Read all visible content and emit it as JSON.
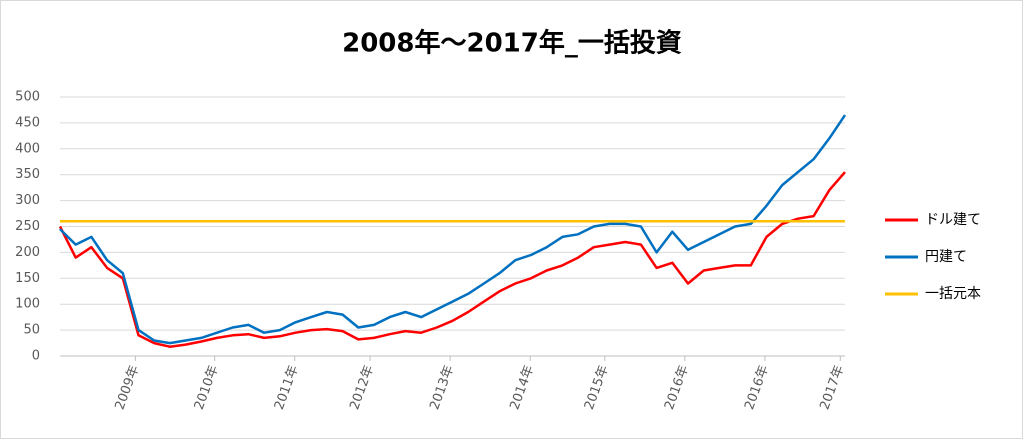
{
  "chart_data": {
    "type": "line",
    "title": "2008年～2017年_一括投資",
    "x": [
      0,
      2,
      4,
      6,
      8,
      10,
      12,
      14,
      16,
      18,
      20,
      22,
      24,
      26,
      28,
      30,
      32,
      34,
      36,
      38,
      40,
      42,
      44,
      46,
      48,
      50,
      52,
      54,
      56,
      58,
      60,
      62,
      64,
      66,
      68,
      70,
      72,
      74,
      76,
      78,
      80,
      82,
      84,
      86,
      88,
      90,
      92,
      94,
      96,
      98,
      100
    ],
    "series": [
      {
        "name": "ドル建て",
        "color": "#ff0000",
        "values": [
          250,
          190,
          210,
          170,
          150,
          40,
          25,
          18,
          22,
          28,
          35,
          40,
          42,
          35,
          38,
          45,
          50,
          52,
          48,
          32,
          35,
          42,
          48,
          45,
          55,
          68,
          85,
          105,
          125,
          140,
          150,
          165,
          175,
          190,
          210,
          215,
          220,
          215,
          170,
          180,
          140,
          165,
          170,
          175,
          175,
          230,
          255,
          265,
          270,
          320,
          355
        ]
      },
      {
        "name": "円建て",
        "color": "#0070c0",
        "values": [
          245,
          215,
          230,
          185,
          160,
          50,
          30,
          25,
          30,
          35,
          45,
          55,
          60,
          45,
          50,
          65,
          75,
          85,
          80,
          55,
          60,
          75,
          85,
          75,
          90,
          105,
          120,
          140,
          160,
          185,
          195,
          210,
          230,
          235,
          250,
          255,
          255,
          250,
          200,
          240,
          205,
          220,
          235,
          250,
          255,
          290,
          330,
          355,
          380,
          420,
          465
        ]
      },
      {
        "name": "一括元本",
        "color": "#ffc000",
        "values": [
          260,
          260,
          260,
          260,
          260,
          260,
          260,
          260,
          260,
          260,
          260,
          260,
          260,
          260,
          260,
          260,
          260,
          260,
          260,
          260,
          260,
          260,
          260,
          260,
          260,
          260,
          260,
          260,
          260,
          260,
          260,
          260,
          260,
          260,
          260,
          260,
          260,
          260,
          260,
          260,
          260,
          260,
          260,
          260,
          260,
          260,
          260,
          260,
          260,
          260,
          260
        ]
      }
    ],
    "xlim": [
      0,
      100
    ],
    "xticks": [
      {
        "value": 9.6,
        "label": "2009年"
      },
      {
        "value": 19.7,
        "label": "2010年"
      },
      {
        "value": 29.9,
        "label": "2011年"
      },
      {
        "value": 39.5,
        "label": "2012年"
      },
      {
        "value": 49.7,
        "label": "2013年"
      },
      {
        "value": 59.9,
        "label": "2014年"
      },
      {
        "value": 69.4,
        "label": "2015年"
      },
      {
        "value": 79.6,
        "label": "2016年"
      },
      {
        "value": 89.8,
        "label": "2016年"
      },
      {
        "value": 99.4,
        "label": "2017年"
      }
    ],
    "ylim": [
      0,
      500
    ],
    "yticks": [
      0,
      50,
      100,
      150,
      200,
      250,
      300,
      350,
      400,
      450,
      500
    ],
    "grid": true,
    "legend": "right"
  }
}
